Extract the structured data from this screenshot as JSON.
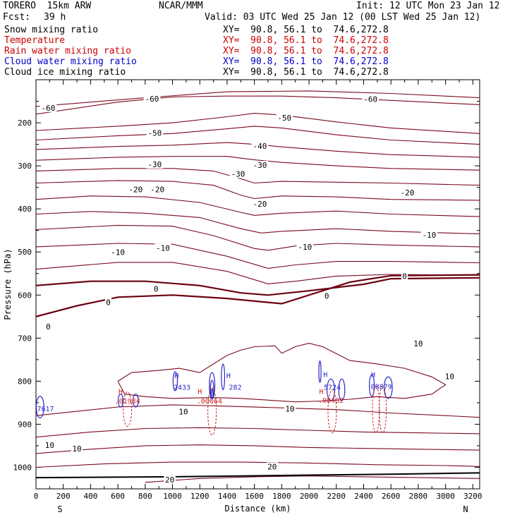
{
  "header": {
    "model": "TORERO  15km ARW",
    "org": "NCAR/MMM",
    "init": "Init: 12 UTC Mon 23 Jan 12",
    "fcst_label": "Fcst:",
    "fcst_value": "39 h",
    "valid": "Valid: 03 UTC Wed 25 Jan 12 (00 LST Wed 25 Jan 12)"
  },
  "legend": [
    {
      "name": "Snow mixing ratio",
      "xy": "XY=  90.8, 56.1 to  74.6,272.8",
      "color": "#000000"
    },
    {
      "name": "Temperature",
      "xy": "XY=  90.8, 56.1 to  74.6,272.8",
      "color": "#cc0000"
    },
    {
      "name": "Rain water mixing ratio",
      "xy": "XY=  90.8, 56.1 to  74.6,272.8",
      "color": "#cc0000"
    },
    {
      "name": "Cloud water mixing ratio",
      "xy": "XY=  90.8, 56.1 to  74.6,272.8",
      "color": "#0000cc"
    },
    {
      "name": "Cloud ice mixing ratio",
      "xy": "XY=  90.8, 56.1 to  74.6,272.8",
      "color": "#000000"
    }
  ],
  "chart_data": {
    "type": "cross-section",
    "xlabel": "Distance (km)",
    "ylabel": "Pressure (hPa)",
    "xlim": [
      0,
      3250
    ],
    "ylim": [
      100,
      1050
    ],
    "x_ticks": [
      0,
      200,
      400,
      600,
      800,
      1000,
      1200,
      1400,
      1600,
      1800,
      2000,
      2200,
      2400,
      2600,
      2800,
      3000,
      3200
    ],
    "y_ticks": [
      200,
      300,
      400,
      500,
      600,
      700,
      800,
      900,
      1000
    ],
    "endpoints": {
      "left": "S",
      "right": "N"
    },
    "colors": {
      "temperature": "#7a0a1c",
      "zero_isotherm": "#6a0010",
      "cloud_water": "#2828c8",
      "rain": "#cc2222",
      "ground": "#000000"
    },
    "temperature_isotherms": [
      {
        "value": -60,
        "points": [
          [
            0,
            180
          ],
          [
            600,
            152
          ],
          [
            1000,
            140
          ],
          [
            1400,
            138
          ],
          [
            1800,
            138
          ],
          [
            2200,
            142
          ],
          [
            2600,
            148
          ],
          [
            3250,
            158
          ]
        ]
      },
      {
        "value": -60,
        "points": [
          [
            0,
            162
          ],
          [
            800,
            142
          ],
          [
            1400,
            128
          ],
          [
            2000,
            126
          ],
          [
            2600,
            132
          ],
          [
            3250,
            142
          ]
        ]
      },
      {
        "value": -50,
        "points": [
          [
            0,
            218
          ],
          [
            600,
            208
          ],
          [
            1000,
            200
          ],
          [
            1400,
            186
          ],
          [
            1600,
            178
          ],
          [
            1800,
            182
          ],
          [
            2200,
            198
          ],
          [
            2600,
            212
          ],
          [
            3250,
            225
          ]
        ]
      },
      {
        "value": -50,
        "points": [
          [
            0,
            240
          ],
          [
            600,
            230
          ],
          [
            1000,
            225
          ],
          [
            1400,
            214
          ],
          [
            1600,
            208
          ],
          [
            1800,
            212
          ],
          [
            2200,
            228
          ],
          [
            2600,
            240
          ],
          [
            3250,
            250
          ]
        ]
      },
      {
        "value": -40,
        "points": [
          [
            0,
            262
          ],
          [
            600,
            255
          ],
          [
            1000,
            252
          ],
          [
            1400,
            246
          ],
          [
            1600,
            250
          ],
          [
            1800,
            256
          ],
          [
            2200,
            266
          ],
          [
            2600,
            274
          ],
          [
            3250,
            280
          ]
        ]
      },
      {
        "value": -40,
        "points": [
          [
            0,
            287
          ],
          [
            600,
            280
          ],
          [
            1000,
            278
          ],
          [
            1400,
            278
          ],
          [
            1600,
            286
          ],
          [
            1800,
            292
          ],
          [
            2200,
            300
          ],
          [
            2600,
            306
          ],
          [
            3250,
            310
          ]
        ]
      },
      {
        "value": -30,
        "points": [
          [
            0,
            312
          ],
          [
            600,
            306
          ],
          [
            1000,
            306
          ],
          [
            1300,
            312
          ],
          [
            1500,
            330
          ],
          [
            1600,
            340
          ],
          [
            1800,
            336
          ],
          [
            2200,
            338
          ],
          [
            2600,
            340
          ],
          [
            3250,
            345
          ]
        ]
      },
      {
        "value": -30,
        "points": [
          [
            0,
            340
          ],
          [
            600,
            334
          ],
          [
            1000,
            336
          ],
          [
            1300,
            345
          ],
          [
            1500,
            368
          ],
          [
            1600,
            376
          ],
          [
            1800,
            370
          ],
          [
            2200,
            372
          ],
          [
            2600,
            378
          ],
          [
            3250,
            380
          ]
        ]
      },
      {
        "value": -20,
        "points": [
          [
            0,
            378
          ],
          [
            400,
            370
          ],
          [
            800,
            372
          ],
          [
            1200,
            385
          ],
          [
            1500,
            408
          ],
          [
            1600,
            415
          ],
          [
            1800,
            410
          ],
          [
            2200,
            405
          ],
          [
            2600,
            412
          ],
          [
            3250,
            418
          ]
        ]
      },
      {
        "value": -20,
        "points": [
          [
            0,
            412
          ],
          [
            400,
            406
          ],
          [
            800,
            410
          ],
          [
            1200,
            420
          ],
          [
            1500,
            446
          ],
          [
            1650,
            456
          ],
          [
            1800,
            452
          ],
          [
            2200,
            446
          ],
          [
            2600,
            452
          ],
          [
            3250,
            458
          ]
        ]
      },
      {
        "value": -10,
        "points": [
          [
            0,
            448
          ],
          [
            600,
            438
          ],
          [
            1000,
            440
          ],
          [
            1300,
            462
          ],
          [
            1600,
            492
          ],
          [
            1700,
            496
          ],
          [
            1900,
            486
          ],
          [
            2200,
            480
          ],
          [
            2600,
            484
          ],
          [
            3250,
            488
          ]
        ]
      },
      {
        "value": -10,
        "points": [
          [
            0,
            488
          ],
          [
            600,
            480
          ],
          [
            1000,
            482
          ],
          [
            1400,
            510
          ],
          [
            1700,
            538
          ],
          [
            1900,
            530
          ],
          [
            2200,
            522
          ],
          [
            2600,
            522
          ],
          [
            3250,
            525
          ]
        ]
      },
      {
        "value": -10,
        "points": [
          [
            0,
            540
          ],
          [
            600,
            524
          ],
          [
            1000,
            524
          ],
          [
            1400,
            545
          ],
          [
            1700,
            574
          ],
          [
            1900,
            568
          ],
          [
            2200,
            556
          ],
          [
            2600,
            552
          ],
          [
            3250,
            554
          ]
        ]
      },
      {
        "value": 0,
        "points": [
          [
            0,
            578
          ],
          [
            400,
            568
          ],
          [
            800,
            568
          ],
          [
            1200,
            578
          ],
          [
            1500,
            595
          ],
          [
            1700,
            600
          ],
          [
            2000,
            590
          ],
          [
            2400,
            575
          ],
          [
            2600,
            562
          ],
          [
            3250,
            560
          ]
        ]
      },
      {
        "value": 0,
        "points": [
          [
            0,
            650
          ],
          [
            300,
            625
          ],
          [
            600,
            605
          ],
          [
            1000,
            600
          ],
          [
            1400,
            608
          ],
          [
            1800,
            620
          ],
          [
            2100,
            590
          ],
          [
            2300,
            570
          ],
          [
            2600,
            555
          ],
          [
            3250,
            553
          ]
        ]
      },
      {
        "value": 10,
        "points": [
          [
            600,
            800
          ],
          [
            700,
            780
          ],
          [
            900,
            775
          ],
          [
            1050,
            770
          ],
          [
            1200,
            780
          ],
          [
            1300,
            760
          ],
          [
            1400,
            740
          ],
          [
            1500,
            728
          ],
          [
            1600,
            720
          ],
          [
            1750,
            718
          ],
          [
            1800,
            735
          ],
          [
            1900,
            720
          ],
          [
            2000,
            712
          ],
          [
            2100,
            720
          ],
          [
            2300,
            752
          ],
          [
            2500,
            760
          ],
          [
            2700,
            770
          ],
          [
            2900,
            790
          ],
          [
            3000,
            808
          ],
          [
            2900,
            830
          ],
          [
            2700,
            840
          ],
          [
            2500,
            836
          ],
          [
            2300,
            842
          ],
          [
            2100,
            846
          ],
          [
            1900,
            848
          ],
          [
            1700,
            844
          ],
          [
            1500,
            840
          ],
          [
            1300,
            838
          ],
          [
            1000,
            840
          ],
          [
            800,
            836
          ],
          [
            650,
            830
          ],
          [
            600,
            800
          ]
        ]
      },
      {
        "value": 10,
        "points": [
          [
            0,
            880
          ],
          [
            300,
            870
          ],
          [
            600,
            860
          ],
          [
            1000,
            855
          ],
          [
            1400,
            858
          ],
          [
            1800,
            862
          ],
          [
            2200,
            866
          ],
          [
            2600,
            874
          ],
          [
            3000,
            880
          ],
          [
            3250,
            884
          ]
        ]
      },
      {
        "value": 10,
        "points": [
          [
            0,
            930
          ],
          [
            400,
            918
          ],
          [
            800,
            910
          ],
          [
            1200,
            908
          ],
          [
            1600,
            910
          ],
          [
            2000,
            914
          ],
          [
            2400,
            918
          ],
          [
            2800,
            920
          ],
          [
            3250,
            922
          ]
        ]
      },
      {
        "value": 10,
        "points": [
          [
            0,
            968
          ],
          [
            400,
            958
          ],
          [
            800,
            950
          ],
          [
            1200,
            948
          ],
          [
            1600,
            950
          ],
          [
            2000,
            954
          ],
          [
            2400,
            956
          ],
          [
            2800,
            958
          ],
          [
            3250,
            960
          ]
        ]
      },
      {
        "value": 20,
        "points": [
          [
            0,
            1000
          ],
          [
            500,
            992
          ],
          [
            1000,
            988
          ],
          [
            1500,
            988
          ],
          [
            2000,
            990
          ],
          [
            2500,
            994
          ],
          [
            3000,
            996
          ],
          [
            3250,
            998
          ]
        ]
      },
      {
        "value": 20,
        "points": [
          [
            800,
            1035
          ],
          [
            1200,
            1026
          ],
          [
            1600,
            1022
          ],
          [
            2000,
            1020
          ],
          [
            2400,
            1022
          ],
          [
            2800,
            1024
          ],
          [
            3250,
            1026
          ]
        ]
      }
    ],
    "isotherm_labels": [
      {
        "text": "-60",
        "x": 90,
        "y": 167
      },
      {
        "text": "-60",
        "x": 850,
        "y": 146
      },
      {
        "text": "-60",
        "x": 2450,
        "y": 147
      },
      {
        "text": "-50",
        "x": 870,
        "y": 225
      },
      {
        "text": "-50",
        "x": 1820,
        "y": 190
      },
      {
        "text": "-40",
        "x": 1640,
        "y": 256
      },
      {
        "text": "-30",
        "x": 870,
        "y": 298
      },
      {
        "text": "-30",
        "x": 1480,
        "y": 320
      },
      {
        "text": "-30",
        "x": 1640,
        "y": 300
      },
      {
        "text": "-20",
        "x": 730,
        "y": 356
      },
      {
        "text": "-20",
        "x": 890,
        "y": 356
      },
      {
        "text": "-20",
        "x": 1640,
        "y": 390
      },
      {
        "text": "-20",
        "x": 2720,
        "y": 364
      },
      {
        "text": "-10",
        "x": 600,
        "y": 502
      },
      {
        "text": "-10",
        "x": 930,
        "y": 492
      },
      {
        "text": "-10",
        "x": 1970,
        "y": 490
      },
      {
        "text": "-10",
        "x": 2880,
        "y": 462
      },
      {
        "text": "0",
        "x": 530,
        "y": 618
      },
      {
        "text": "0",
        "x": 880,
        "y": 587
      },
      {
        "text": "0",
        "x": 2130,
        "y": 604
      },
      {
        "text": "0",
        "x": 2700,
        "y": 558
      },
      {
        "text": "0",
        "x": 90,
        "y": 675
      },
      {
        "text": "10",
        "x": 2800,
        "y": 714
      },
      {
        "text": "10",
        "x": 3030,
        "y": 790
      },
      {
        "text": "10",
        "x": 1860,
        "y": 866
      },
      {
        "text": "10",
        "x": 1080,
        "y": 872
      },
      {
        "text": "10",
        "x": 100,
        "y": 950
      },
      {
        "text": "10",
        "x": 300,
        "y": 958
      },
      {
        "text": "20",
        "x": 980,
        "y": 1030
      },
      {
        "text": "20",
        "x": 1730,
        "y": 1000
      }
    ],
    "ground_line": [
      [
        0,
        1024
      ],
      [
        1000,
        1022
      ],
      [
        2000,
        1018
      ],
      [
        2600,
        1016
      ],
      [
        3250,
        1013
      ]
    ],
    "cloud_water_features": [
      {
        "label": "H",
        "x": 1030,
        "y": 793
      },
      {
        "label": "2433",
        "x": 1070,
        "y": 820
      },
      {
        "label": "H",
        "x": 1410,
        "y": 793
      },
      {
        "label": "282",
        "x": 1460,
        "y": 820
      },
      {
        "label": "H",
        "x": 2120,
        "y": 790
      },
      {
        "label": "5724",
        "x": 2170,
        "y": 820
      },
      {
        "label": "H",
        "x": 2470,
        "y": 790
      },
      {
        "label": "08879",
        "x": 2530,
        "y": 818
      },
      {
        "label": "7617",
        "x": 70,
        "y": 870
      }
    ],
    "rain_features": [
      {
        "label": "H",
        "x": 620,
        "y": 830
      },
      {
        "label": "H",
        "x": 1200,
        "y": 830
      },
      {
        "label": ".00664",
        "x": 1270,
        "y": 852
      },
      {
        "label": "H",
        "x": 2090,
        "y": 830
      },
      {
        "label": ".00482",
        "x": 2160,
        "y": 850
      },
      {
        "label": ".01984",
        "x": 670,
        "y": 852
      }
    ]
  }
}
